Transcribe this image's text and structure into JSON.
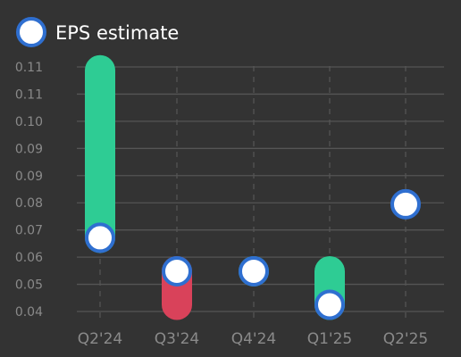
{
  "chart_data": {
    "type": "bar",
    "title": "",
    "xlabel": "",
    "ylabel": "",
    "categories": [
      "Q2'24",
      "Q3'24",
      "Q4'24",
      "Q1'25",
      "Q2'25"
    ],
    "series": [
      {
        "name": "EPS estimate",
        "values": [
          0.06,
          0.05,
          0.05,
          0.04,
          0.07
        ]
      },
      {
        "name": "",
        "values": [
          0.11,
          0.04,
          0.05,
          0.05,
          null
        ]
      }
    ],
    "y_ticks": [
      "0.04",
      "0.05",
      "0.06",
      "0.07",
      "0.08",
      "0.09",
      "0.09",
      "0.10",
      "0.11",
      "0.11"
    ],
    "ylim": [
      0.038,
      0.111
    ],
    "grid": true,
    "legend_position": "top-left",
    "colors": {
      "background": "#333333",
      "beat": "#2ecc94",
      "miss": "#d9425a",
      "marker_fill": "#ffffff",
      "marker_stroke": "#2f6fd0",
      "grid": "#555555",
      "tick_text": "#8a8a8a",
      "legend_text": "#ffffff"
    }
  }
}
